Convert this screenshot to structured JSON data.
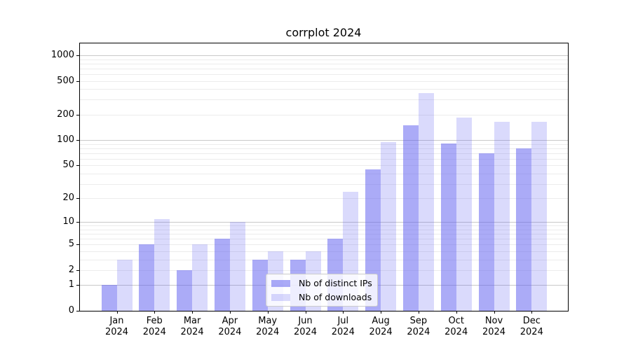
{
  "chart_data": {
    "type": "bar",
    "title": "corrplot 2024",
    "categories": [
      "Jan",
      "Feb",
      "Mar",
      "Apr",
      "May",
      "Jun",
      "Jul",
      "Aug",
      "Sep",
      "Oct",
      "Nov",
      "Dec"
    ],
    "category_year": "2024",
    "series": [
      {
        "key": "distinct-ips",
        "name": "Nb of distinct IPs",
        "color": "#5757f0",
        "alpha": 0.5,
        "values": [
          1,
          5,
          2,
          6,
          3,
          3,
          6,
          45,
          150,
          92,
          70,
          80
        ]
      },
      {
        "key": "downloads",
        "name": "Nb of downloads",
        "color": "#5757f0",
        "alpha": 0.22,
        "values": [
          3,
          11,
          5,
          10,
          4,
          4,
          24,
          95,
          360,
          186,
          165,
          165
        ]
      }
    ],
    "xlabel": "",
    "ylabel": "",
    "yscale": "log1p",
    "yticks": [
      0,
      1,
      2,
      5,
      10,
      20,
      50,
      100,
      200,
      500,
      1000
    ],
    "ylim": [
      0,
      1380
    ],
    "grid": true,
    "grid_minor_color": "#ececec",
    "grid_major_color": "#c9c9c9",
    "spine_color": "#000000",
    "background_color": "#ffffff",
    "legend_location": "lower center"
  }
}
